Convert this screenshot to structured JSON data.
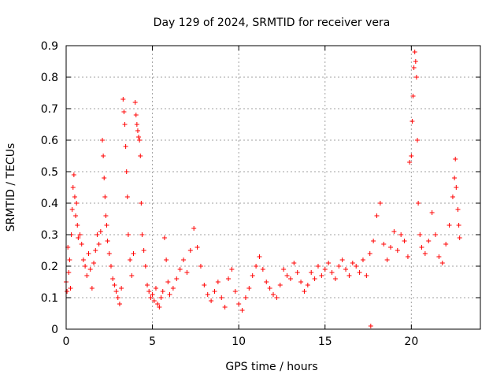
{
  "chart_data": {
    "type": "scatter",
    "title": "Day 129 of 2024, SRMTID for receiver vera",
    "xlabel": "GPS time / hours",
    "ylabel": "SRMTID / TECUs",
    "xlim": [
      0,
      24
    ],
    "ylim": [
      0,
      0.9
    ],
    "xticks": [
      0,
      5,
      10,
      15,
      20
    ],
    "yticks": [
      0,
      0.1,
      0.2,
      0.3,
      0.4,
      0.5,
      0.6,
      0.7,
      0.8,
      0.9
    ],
    "xtick_labels": [
      "0",
      "5",
      "10",
      "15",
      "20"
    ],
    "ytick_labels": [
      "0",
      "0.1",
      "0.2",
      "0.3",
      "0.4",
      "0.5",
      "0.6",
      "0.7",
      "0.8",
      "0.9"
    ],
    "grid": true,
    "marker": "+",
    "marker_color": "#ff0000",
    "series": [
      {
        "name": "SRMTID",
        "points": [
          [
            0.0,
            0.15
          ],
          [
            0.05,
            0.12
          ],
          [
            0.1,
            0.26
          ],
          [
            0.15,
            0.18
          ],
          [
            0.2,
            0.22
          ],
          [
            0.25,
            0.13
          ],
          [
            0.3,
            0.3
          ],
          [
            0.35,
            0.38
          ],
          [
            0.4,
            0.45
          ],
          [
            0.45,
            0.49
          ],
          [
            0.5,
            0.42
          ],
          [
            0.55,
            0.36
          ],
          [
            0.6,
            0.4
          ],
          [
            0.65,
            0.33
          ],
          [
            0.7,
            0.29
          ],
          [
            0.8,
            0.3
          ],
          [
            0.9,
            0.27
          ],
          [
            1.0,
            0.22
          ],
          [
            1.1,
            0.2
          ],
          [
            1.2,
            0.17
          ],
          [
            1.3,
            0.24
          ],
          [
            1.4,
            0.19
          ],
          [
            1.5,
            0.13
          ],
          [
            1.6,
            0.21
          ],
          [
            1.7,
            0.25
          ],
          [
            1.8,
            0.3
          ],
          [
            1.9,
            0.27
          ],
          [
            2.0,
            0.31
          ],
          [
            2.1,
            0.6
          ],
          [
            2.15,
            0.55
          ],
          [
            2.2,
            0.48
          ],
          [
            2.25,
            0.42
          ],
          [
            2.3,
            0.36
          ],
          [
            2.35,
            0.33
          ],
          [
            2.4,
            0.28
          ],
          [
            2.5,
            0.24
          ],
          [
            2.6,
            0.2
          ],
          [
            2.7,
            0.16
          ],
          [
            2.8,
            0.14
          ],
          [
            2.9,
            0.12
          ],
          [
            3.0,
            0.1
          ],
          [
            3.1,
            0.08
          ],
          [
            3.2,
            0.13
          ],
          [
            3.3,
            0.73
          ],
          [
            3.35,
            0.69
          ],
          [
            3.4,
            0.65
          ],
          [
            3.45,
            0.58
          ],
          [
            3.5,
            0.5
          ],
          [
            3.55,
            0.42
          ],
          [
            3.6,
            0.3
          ],
          [
            3.7,
            0.22
          ],
          [
            3.8,
            0.17
          ],
          [
            3.9,
            0.24
          ],
          [
            4.0,
            0.72
          ],
          [
            4.05,
            0.68
          ],
          [
            4.1,
            0.65
          ],
          [
            4.15,
            0.63
          ],
          [
            4.2,
            0.61
          ],
          [
            4.25,
            0.6
          ],
          [
            4.3,
            0.55
          ],
          [
            4.35,
            0.4
          ],
          [
            4.4,
            0.3
          ],
          [
            4.5,
            0.25
          ],
          [
            4.6,
            0.2
          ],
          [
            4.7,
            0.14
          ],
          [
            4.8,
            0.12
          ],
          [
            4.9,
            0.1
          ],
          [
            5.0,
            0.11
          ],
          [
            5.1,
            0.09
          ],
          [
            5.2,
            0.13
          ],
          [
            5.3,
            0.08
          ],
          [
            5.4,
            0.07
          ],
          [
            5.5,
            0.1
          ],
          [
            5.6,
            0.12
          ],
          [
            5.7,
            0.29
          ],
          [
            5.8,
            0.22
          ],
          [
            5.9,
            0.15
          ],
          [
            6.0,
            0.11
          ],
          [
            6.2,
            0.13
          ],
          [
            6.4,
            0.16
          ],
          [
            6.6,
            0.19
          ],
          [
            6.8,
            0.22
          ],
          [
            7.0,
            0.18
          ],
          [
            7.2,
            0.25
          ],
          [
            7.4,
            0.32
          ],
          [
            7.6,
            0.26
          ],
          [
            7.8,
            0.2
          ],
          [
            8.0,
            0.14
          ],
          [
            8.2,
            0.11
          ],
          [
            8.4,
            0.09
          ],
          [
            8.6,
            0.12
          ],
          [
            8.8,
            0.15
          ],
          [
            9.0,
            0.1
          ],
          [
            9.2,
            0.07
          ],
          [
            9.4,
            0.16
          ],
          [
            9.6,
            0.19
          ],
          [
            9.8,
            0.12
          ],
          [
            10.0,
            0.08
          ],
          [
            10.2,
            0.06
          ],
          [
            10.4,
            0.1
          ],
          [
            10.6,
            0.13
          ],
          [
            10.8,
            0.17
          ],
          [
            11.0,
            0.2
          ],
          [
            11.2,
            0.23
          ],
          [
            11.4,
            0.19
          ],
          [
            11.6,
            0.15
          ],
          [
            11.8,
            0.13
          ],
          [
            12.0,
            0.11
          ],
          [
            12.2,
            0.1
          ],
          [
            12.4,
            0.14
          ],
          [
            12.6,
            0.19
          ],
          [
            12.8,
            0.17
          ],
          [
            13.0,
            0.16
          ],
          [
            13.2,
            0.21
          ],
          [
            13.4,
            0.18
          ],
          [
            13.6,
            0.15
          ],
          [
            13.8,
            0.12
          ],
          [
            14.0,
            0.14
          ],
          [
            14.2,
            0.18
          ],
          [
            14.4,
            0.16
          ],
          [
            14.6,
            0.2
          ],
          [
            14.8,
            0.17
          ],
          [
            15.0,
            0.19
          ],
          [
            15.2,
            0.21
          ],
          [
            15.4,
            0.18
          ],
          [
            15.6,
            0.16
          ],
          [
            15.8,
            0.2
          ],
          [
            16.0,
            0.22
          ],
          [
            16.2,
            0.19
          ],
          [
            16.4,
            0.17
          ],
          [
            16.6,
            0.21
          ],
          [
            16.8,
            0.2
          ],
          [
            17.0,
            0.18
          ],
          [
            17.2,
            0.22
          ],
          [
            17.4,
            0.17
          ],
          [
            17.6,
            0.24
          ],
          [
            17.65,
            0.01
          ],
          [
            17.8,
            0.28
          ],
          [
            18.0,
            0.36
          ],
          [
            18.2,
            0.4
          ],
          [
            18.4,
            0.27
          ],
          [
            18.6,
            0.22
          ],
          [
            18.8,
            0.26
          ],
          [
            19.0,
            0.31
          ],
          [
            19.2,
            0.25
          ],
          [
            19.4,
            0.3
          ],
          [
            19.6,
            0.28
          ],
          [
            19.8,
            0.23
          ],
          [
            19.9,
            0.53
          ],
          [
            20.0,
            0.55
          ],
          [
            20.05,
            0.66
          ],
          [
            20.1,
            0.74
          ],
          [
            20.15,
            0.83
          ],
          [
            20.2,
            0.88
          ],
          [
            20.25,
            0.85
          ],
          [
            20.3,
            0.8
          ],
          [
            20.35,
            0.6
          ],
          [
            20.4,
            0.4
          ],
          [
            20.5,
            0.3
          ],
          [
            20.6,
            0.26
          ],
          [
            20.8,
            0.24
          ],
          [
            21.0,
            0.28
          ],
          [
            21.2,
            0.37
          ],
          [
            21.4,
            0.3
          ],
          [
            21.6,
            0.23
          ],
          [
            21.8,
            0.21
          ],
          [
            22.0,
            0.27
          ],
          [
            22.2,
            0.33
          ],
          [
            22.4,
            0.42
          ],
          [
            22.5,
            0.48
          ],
          [
            22.55,
            0.54
          ],
          [
            22.6,
            0.45
          ],
          [
            22.7,
            0.38
          ],
          [
            22.75,
            0.33
          ],
          [
            22.8,
            0.29
          ]
        ]
      }
    ]
  }
}
